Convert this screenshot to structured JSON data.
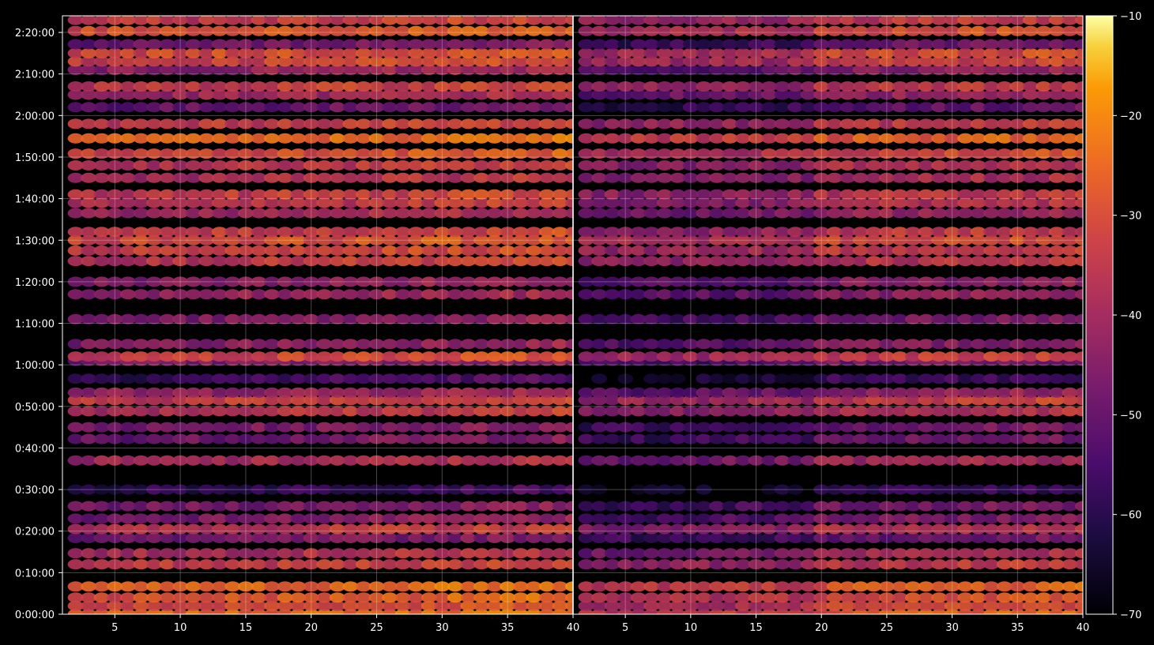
{
  "chart_data": {
    "type": "heatmap",
    "title": "",
    "xlabel": "",
    "ylabel": "",
    "panels": [
      {
        "name": "",
        "xlim": [
          1,
          40
        ]
      },
      {
        "name": "",
        "xlim": [
          1,
          40
        ]
      }
    ],
    "x_ticks": [
      "5",
      "10",
      "15",
      "20",
      "25",
      "30",
      "35",
      "40"
    ],
    "y_ticks": [
      "0:00:00",
      "0:10:00",
      "0:20:00",
      "0:30:00",
      "0:40:00",
      "0:50:00",
      "1:00:00",
      "1:10:00",
      "1:20:00",
      "1:30:00",
      "1:40:00",
      "1:50:00",
      "2:00:00",
      "2:10:00",
      "2:20:00"
    ],
    "ylim_seconds": [
      0,
      8640
    ],
    "colormap": "inferno",
    "colorbar": {
      "range": [
        -70,
        -10
      ],
      "ticks": [
        "−10",
        "−20",
        "−30",
        "−40",
        "−50",
        "−60",
        "−70"
      ]
    },
    "grid": true,
    "x_channels": [
      2,
      40
    ],
    "row_profile": [
      {
        "t": 0,
        "v": -27
      },
      {
        "t": 120,
        "v": -33
      },
      {
        "t": 240,
        "v": -30
      },
      {
        "t": 400,
        "v": -28
      },
      {
        "t": 720,
        "v": -36
      },
      {
        "t": 880,
        "v": -40
      },
      {
        "t": 1100,
        "v": -50
      },
      {
        "t": 1230,
        "v": -38
      },
      {
        "t": 1380,
        "v": -48
      },
      {
        "t": 1560,
        "v": -49
      },
      {
        "t": 1800,
        "v": -60
      },
      {
        "t": 2220,
        "v": -42
      },
      {
        "t": 2530,
        "v": -50
      },
      {
        "t": 2700,
        "v": -49
      },
      {
        "t": 2930,
        "v": -38
      },
      {
        "t": 3090,
        "v": -35
      },
      {
        "t": 3200,
        "v": -44
      },
      {
        "t": 3400,
        "v": -58
      },
      {
        "t": 3660,
        "v": -48
      },
      {
        "t": 3720,
        "v": -34
      },
      {
        "t": 3900,
        "v": -46
      },
      {
        "t": 4260,
        "v": -48
      },
      {
        "t": 4620,
        "v": -45
      },
      {
        "t": 4800,
        "v": -46
      },
      {
        "t": 5100,
        "v": -37
      },
      {
        "t": 5250,
        "v": -35
      },
      {
        "t": 5400,
        "v": -32
      },
      {
        "t": 5520,
        "v": -36
      },
      {
        "t": 5790,
        "v": -42
      },
      {
        "t": 5940,
        "v": -38
      },
      {
        "t": 6060,
        "v": -36
      },
      {
        "t": 6300,
        "v": -40
      },
      {
        "t": 6480,
        "v": -38
      },
      {
        "t": 6650,
        "v": -32
      },
      {
        "t": 6870,
        "v": -28
      },
      {
        "t": 7080,
        "v": -36
      },
      {
        "t": 7320,
        "v": -52
      },
      {
        "t": 7500,
        "v": -43
      },
      {
        "t": 7620,
        "v": -36
      },
      {
        "t": 7860,
        "v": -45
      },
      {
        "t": 7980,
        "v": -34
      },
      {
        "t": 8100,
        "v": -32
      },
      {
        "t": 8230,
        "v": -50
      },
      {
        "t": 8420,
        "v": -31
      },
      {
        "t": 8580,
        "v": -36
      }
    ]
  }
}
